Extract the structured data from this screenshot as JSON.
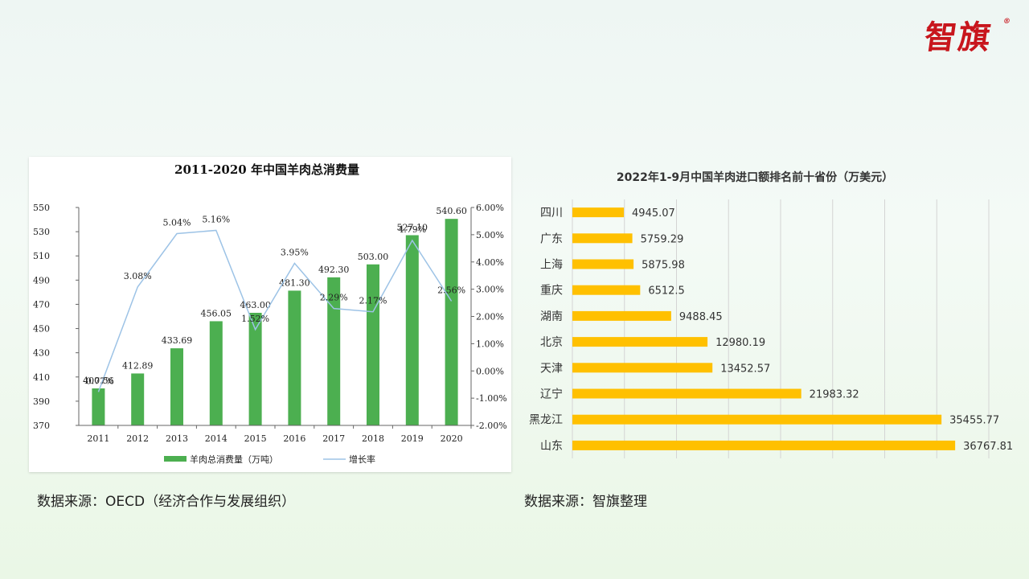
{
  "brand": {
    "logo_text": "智旗",
    "registered": "®"
  },
  "captions": {
    "left": "数据来源：OECD（经济合作与发展组织）",
    "right": "数据来源：智旗整理"
  },
  "chart_data": [
    {
      "type": "bar",
      "title": "2011-2020 年中国羊肉总消费量",
      "categories": [
        "2011",
        "2012",
        "2013",
        "2014",
        "2015",
        "2016",
        "2017",
        "2018",
        "2019",
        "2020"
      ],
      "series": [
        {
          "name": "羊肉总消费量（万吨）",
          "type": "bar",
          "axis": "left",
          "values": [
            400.56,
            412.89,
            433.69,
            456.05,
            463.0,
            481.3,
            492.3,
            503.0,
            527.1,
            540.6
          ],
          "labels": [
            "400.56",
            "412.89",
            "433.69",
            "456.05",
            "463.00",
            "481.30",
            "492.30",
            "503.00",
            "527.10",
            "540.60"
          ],
          "color": "#4caf50"
        },
        {
          "name": "增长率",
          "type": "line",
          "axis": "right",
          "values": [
            -0.77,
            3.08,
            5.04,
            5.16,
            1.52,
            3.95,
            2.29,
            2.17,
            4.79,
            2.56
          ],
          "labels": [
            "-0.77%",
            "3.08%",
            "5.04%",
            "5.16%",
            "1.52%",
            "3.95%",
            "2.29%",
            "2.17%",
            "4.79%",
            "2.56%"
          ],
          "color": "#9dc3e6"
        }
      ],
      "ylim": [
        370,
        550
      ],
      "yticks": [
        "370",
        "390",
        "410",
        "430",
        "450",
        "470",
        "490",
        "510",
        "530",
        "550"
      ],
      "y2lim": [
        -2,
        6
      ],
      "y2ticks": [
        "-2.00%",
        "-1.00%",
        "0.00%",
        "1.00%",
        "2.00%",
        "3.00%",
        "4.00%",
        "5.00%",
        "6.00%"
      ],
      "legend": "bottom"
    },
    {
      "type": "bar",
      "orientation": "horizontal",
      "title": "2022年1-9月中国羊肉进口额排名前十省份（万美元）",
      "categories": [
        "四川",
        "广东",
        "上海",
        "重庆",
        "湖南",
        "北京",
        "天津",
        "辽宁",
        "黑龙江",
        "山东"
      ],
      "values": [
        4945.07,
        5759.29,
        5875.98,
        6512.5,
        9488.45,
        12980.19,
        13452.57,
        21983.32,
        35455.77,
        36767.81
      ],
      "labels": [
        "4945.07",
        "5759.29",
        "5875.98",
        "6512.5",
        "9488.45",
        "12980.19",
        "13452.57",
        "21983.32",
        "35455.77",
        "36767.81"
      ],
      "xlim": [
        0,
        40000
      ],
      "grid": true,
      "color": "#ffc000"
    }
  ]
}
